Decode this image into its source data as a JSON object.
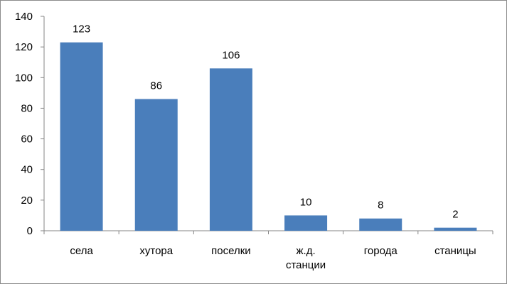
{
  "chart_data": {
    "type": "bar",
    "categories": [
      [
        "села"
      ],
      [
        "хутора"
      ],
      [
        "поселки"
      ],
      [
        "ж.д.",
        "станции"
      ],
      [
        "города"
      ],
      [
        "станицы"
      ]
    ],
    "values": [
      123,
      86,
      106,
      10,
      8,
      2
    ],
    "data_labels": [
      "123",
      "86",
      "106",
      "10",
      "8",
      "2"
    ],
    "y_ticks": [
      "0",
      "20",
      "40",
      "60",
      "80",
      "100",
      "120",
      "140"
    ],
    "ylim": [
      0,
      140
    ],
    "title": "",
    "xlabel": "",
    "ylabel": "",
    "grid": false,
    "legend": "none",
    "bar_color": "#4a7ebb",
    "axis_color": "#868686"
  }
}
